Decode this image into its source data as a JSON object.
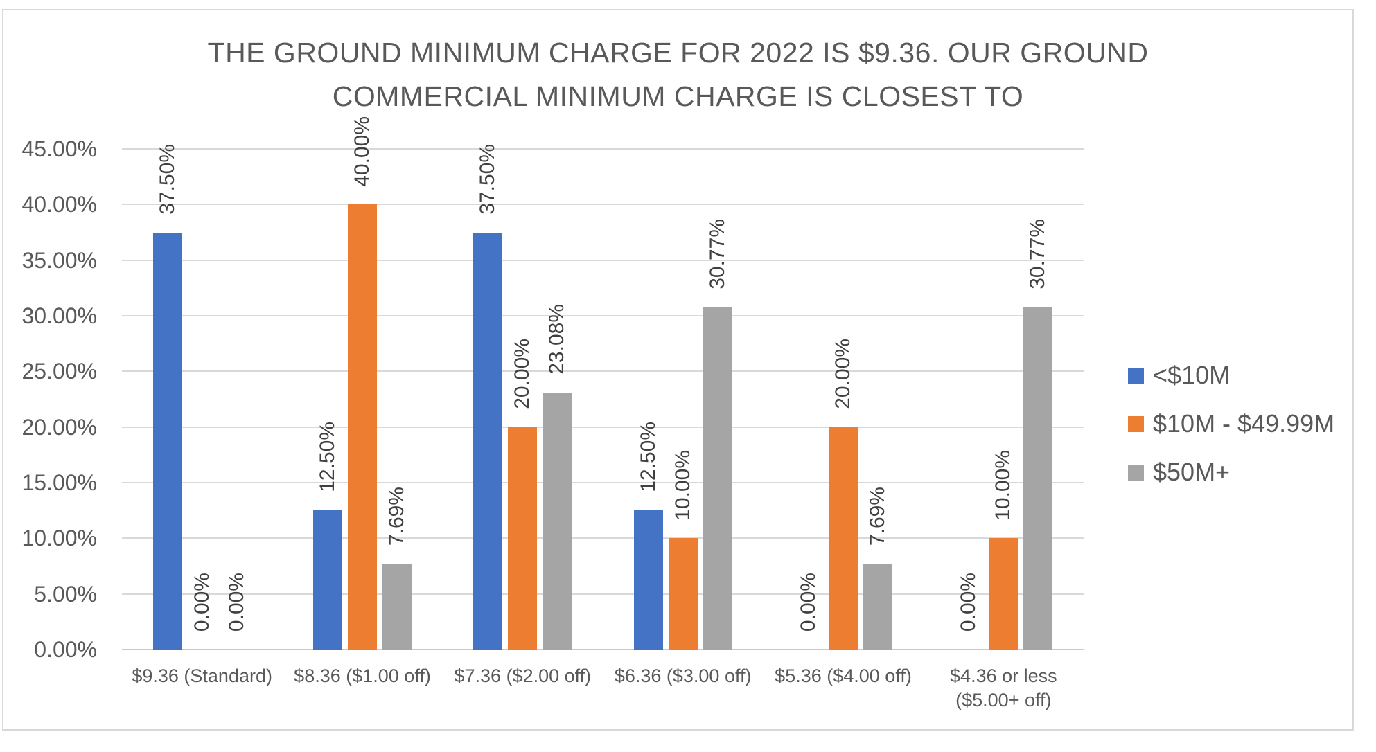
{
  "chart_data": {
    "type": "bar",
    "title": "THE GROUND MINIMUM CHARGE FOR 2022 IS $9.36. OUR GROUND COMMERCIAL MINIMUM CHARGE IS CLOSEST TO",
    "title_lines": [
      "THE GROUND MINIMUM CHARGE FOR 2022 IS $9.36. OUR GROUND",
      "COMMERCIAL MINIMUM CHARGE IS CLOSEST TO"
    ],
    "categories": [
      "$9.36 (Standard)",
      "$8.36 ($1.00 off)",
      "$7.36 ($2.00 off)",
      "$6.36 ($3.00 off)",
      "$5.36 ($4.00 off)",
      "$4.36 or less ($5.00+ off)"
    ],
    "series": [
      {
        "name": "<$10M",
        "color": "#4472C4",
        "values": [
          37.5,
          12.5,
          37.5,
          12.5,
          0.0,
          0.0
        ],
        "labels": [
          "37.50%",
          "12.50%",
          "37.50%",
          "12.50%",
          "0.00%",
          "0.00%"
        ]
      },
      {
        "name": "$10M - $49.99M",
        "color": "#ED7D31",
        "values": [
          0.0,
          40.0,
          20.0,
          10.0,
          20.0,
          10.0
        ],
        "labels": [
          "0.00%",
          "40.00%",
          "20.00%",
          "10.00%",
          "20.00%",
          "10.00%"
        ]
      },
      {
        "name": "$50M+",
        "color": "#A5A5A5",
        "values": [
          0.0,
          7.69,
          23.08,
          30.77,
          7.69,
          30.77
        ],
        "labels": [
          "0.00%",
          "7.69%",
          "23.08%",
          "30.77%",
          "7.69%",
          "30.77%"
        ]
      }
    ],
    "y_axis": {
      "min": 0,
      "max": 45,
      "step": 5,
      "tick_labels": [
        "0.00%",
        "5.00%",
        "10.00%",
        "15.00%",
        "20.00%",
        "25.00%",
        "30.00%",
        "35.00%",
        "40.00%",
        "45.00%"
      ]
    },
    "legend_position": "right",
    "grid": true,
    "styles": {
      "gridline_color": "#D9D9D9",
      "text_color": "#595959",
      "data_label_color": "#404040"
    }
  }
}
